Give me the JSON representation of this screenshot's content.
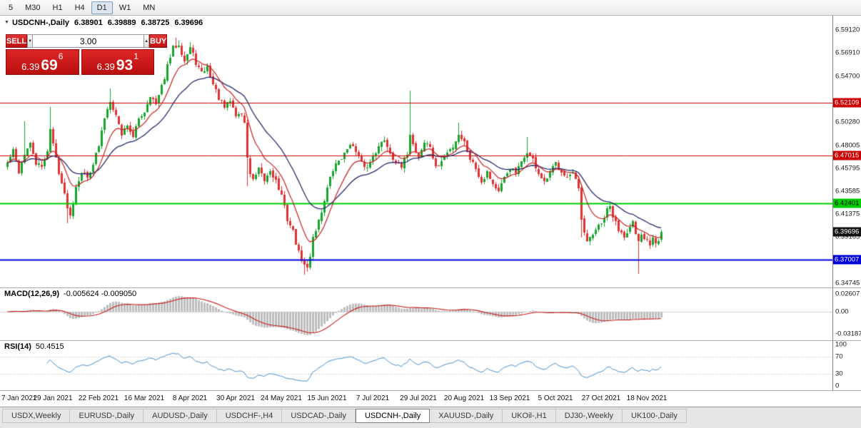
{
  "toolbar": {
    "timeframes": [
      "5",
      "M30",
      "H1",
      "H4",
      "D1",
      "W1",
      "MN"
    ],
    "active_timeframe": "D1"
  },
  "chart_header": {
    "title": "USDCNH-,Daily",
    "open": "6.38901",
    "high": "6.39889",
    "low": "6.38725",
    "close": "6.39696"
  },
  "trade_panel": {
    "sell_label": "SELL",
    "buy_label": "BUY",
    "lot_value": "3.00",
    "sell_price": {
      "prefix": "6.39",
      "main": "69",
      "sup": "6"
    },
    "buy_price": {
      "prefix": "6.39",
      "main": "93",
      "sup": "1"
    }
  },
  "icons": {
    "collapse": "▼",
    "spin_up": "▲",
    "spin_down": "▼"
  },
  "colors": {
    "candle_up": "#18a42e",
    "candle_down": "#e03232",
    "ma_fast": "#c81e1e",
    "ma_slow": "#262a6e",
    "macd_hist": "#bdbdbd",
    "macd_signal": "#c81e1e",
    "rsi_line": "#4f93ce",
    "current_price_bg": "#111111"
  },
  "chart_data": {
    "type": "candlestick",
    "symbol": "USDCNH-",
    "timeframe": "Daily",
    "title": "USDCNH-,Daily",
    "ohlc_current": {
      "open": 6.38901,
      "high": 6.39889,
      "low": 6.38725,
      "close": 6.39696
    },
    "candle_count": 230,
    "seed": 42,
    "noise": 0.0026,
    "wick": 0.004,
    "open_jitter": 0.0012,
    "price_min": 6.343,
    "price_max": 6.6045,
    "price_axis_ticks": [
      {
        "price": 6.5912,
        "label": "6.59120"
      },
      {
        "price": 6.5691,
        "label": "6.56910"
      },
      {
        "price": 6.547,
        "label": "6.54700"
      },
      {
        "price": 6.5028,
        "label": "6.50280"
      },
      {
        "price": 6.48005,
        "label": "6.48005"
      },
      {
        "price": 6.45795,
        "label": "6.45795"
      },
      {
        "price": 6.43585,
        "label": "6.43585"
      },
      {
        "price": 6.41375,
        "label": "6.41375"
      },
      {
        "price": 6.39165,
        "label": "6.39165"
      },
      {
        "price": 6.34745,
        "label": "6.34745"
      }
    ],
    "price_lines": [
      {
        "price": 6.52109,
        "label": "6.52109",
        "color": "#cc0000",
        "text_color": "#ffffff",
        "draw_line": true,
        "line_width": 1
      },
      {
        "price": 6.47015,
        "label": "6.47015",
        "color": "#cc0000",
        "text_color": "#ffffff",
        "draw_line": true,
        "line_width": 1
      },
      {
        "price": 6.42401,
        "label": "6.42401",
        "color": "#00ce00",
        "text_color": "#000000",
        "draw_line": true,
        "line_width": 2
      },
      {
        "price": 6.39696,
        "label": "6.39696",
        "color": "#111111",
        "text_color": "#ffffff",
        "draw_line": false,
        "line_width": 0
      },
      {
        "price": 6.37007,
        "label": "6.37007",
        "color": "#0000dd",
        "text_color": "#ffffff",
        "draw_line": true,
        "line_width": 2
      }
    ],
    "x_labels": [
      {
        "i": 0,
        "t": "7 Jan 2021"
      },
      {
        "i": 16,
        "t": "29 Jan 2021"
      },
      {
        "i": 32,
        "t": "22 Feb 2021"
      },
      {
        "i": 48,
        "t": "16 Mar 2021"
      },
      {
        "i": 64,
        "t": "8 Apr 2021"
      },
      {
        "i": 80,
        "t": "30 Apr 2021"
      },
      {
        "i": 96,
        "t": "24 May 2021"
      },
      {
        "i": 112,
        "t": "15 Jun 2021"
      },
      {
        "i": 128,
        "t": "7 Jul 2021"
      },
      {
        "i": 144,
        "t": "29 Jul 2021"
      },
      {
        "i": 160,
        "t": "20 Aug 2021"
      },
      {
        "i": 176,
        "t": "13 Sep 2021"
      },
      {
        "i": 192,
        "t": "5 Oct 2021"
      },
      {
        "i": 208,
        "t": "27 Oct 2021"
      },
      {
        "i": 224,
        "t": "18 Nov 2021"
      }
    ],
    "close_anchors": [
      [
        0,
        6.463
      ],
      [
        2,
        6.475
      ],
      [
        4,
        6.455
      ],
      [
        6,
        6.472
      ],
      [
        8,
        6.481
      ],
      [
        10,
        6.463
      ],
      [
        12,
        6.458
      ],
      [
        14,
        6.476
      ],
      [
        15,
        6.496
      ],
      [
        16,
        6.481
      ],
      [
        18,
        6.455
      ],
      [
        20,
        6.432
      ],
      [
        22,
        6.412
      ],
      [
        24,
        6.441
      ],
      [
        26,
        6.455
      ],
      [
        28,
        6.449
      ],
      [
        30,
        6.463
      ],
      [
        32,
        6.479
      ],
      [
        34,
        6.507
      ],
      [
        36,
        6.524
      ],
      [
        38,
        6.509
      ],
      [
        40,
        6.491
      ],
      [
        42,
        6.501
      ],
      [
        44,
        6.487
      ],
      [
        46,
        6.506
      ],
      [
        48,
        6.513
      ],
      [
        50,
        6.529
      ],
      [
        52,
        6.519
      ],
      [
        54,
        6.536
      ],
      [
        56,
        6.556
      ],
      [
        58,
        6.574
      ],
      [
        60,
        6.578
      ],
      [
        62,
        6.562
      ],
      [
        64,
        6.574
      ],
      [
        66,
        6.56
      ],
      [
        68,
        6.549
      ],
      [
        70,
        6.556
      ],
      [
        72,
        6.539
      ],
      [
        74,
        6.526
      ],
      [
        76,
        6.516
      ],
      [
        78,
        6.523
      ],
      [
        80,
        6.509
      ],
      [
        82,
        6.511
      ],
      [
        83,
        6.501
      ],
      [
        84,
        6.469
      ],
      [
        85,
        6.453
      ],
      [
        86,
        6.446
      ],
      [
        88,
        6.456
      ],
      [
        90,
        6.446
      ],
      [
        92,
        6.456
      ],
      [
        94,
        6.446
      ],
      [
        96,
        6.431
      ],
      [
        98,
        6.409
      ],
      [
        100,
        6.397
      ],
      [
        102,
        6.376
      ],
      [
        104,
        6.364
      ],
      [
        105,
        6.361
      ],
      [
        106,
        6.374
      ],
      [
        107,
        6.392
      ],
      [
        108,
        6.399
      ],
      [
        110,
        6.416
      ],
      [
        112,
        6.439
      ],
      [
        114,
        6.456
      ],
      [
        116,
        6.466
      ],
      [
        118,
        6.471
      ],
      [
        120,
        6.483
      ],
      [
        122,
        6.473
      ],
      [
        124,
        6.463
      ],
      [
        126,
        6.458
      ],
      [
        128,
        6.471
      ],
      [
        130,
        6.478
      ],
      [
        132,
        6.486
      ],
      [
        134,
        6.473
      ],
      [
        136,
        6.464
      ],
      [
        138,
        6.458
      ],
      [
        140,
        6.473
      ],
      [
        141,
        6.492
      ],
      [
        142,
        6.481
      ],
      [
        144,
        6.469
      ],
      [
        146,
        6.483
      ],
      [
        148,
        6.479
      ],
      [
        150,
        6.458
      ],
      [
        152,
        6.465
      ],
      [
        154,
        6.473
      ],
      [
        156,
        6.479
      ],
      [
        158,
        6.491
      ],
      [
        160,
        6.483
      ],
      [
        162,
        6.468
      ],
      [
        164,
        6.458
      ],
      [
        166,
        6.445
      ],
      [
        168,
        6.455
      ],
      [
        170,
        6.443
      ],
      [
        172,
        6.435
      ],
      [
        174,
        6.448
      ],
      [
        176,
        6.459
      ],
      [
        178,
        6.453
      ],
      [
        180,
        6.463
      ],
      [
        182,
        6.474
      ],
      [
        184,
        6.466
      ],
      [
        186,
        6.453
      ],
      [
        188,
        6.443
      ],
      [
        190,
        6.453
      ],
      [
        192,
        6.463
      ],
      [
        194,
        6.456
      ],
      [
        196,
        6.449
      ],
      [
        198,
        6.453
      ],
      [
        200,
        6.437
      ],
      [
        201,
        6.408
      ],
      [
        202,
        6.394
      ],
      [
        203,
        6.386
      ],
      [
        204,
        6.391
      ],
      [
        206,
        6.399
      ],
      [
        208,
        6.404
      ],
      [
        210,
        6.417
      ],
      [
        211,
        6.421
      ],
      [
        212,
        6.411
      ],
      [
        214,
        6.399
      ],
      [
        216,
        6.394
      ],
      [
        218,
        6.401
      ],
      [
        219,
        6.406
      ],
      [
        220,
        6.392
      ],
      [
        221,
        6.386
      ],
      [
        222,
        6.394
      ],
      [
        223,
        6.389
      ],
      [
        224,
        6.391
      ],
      [
        225,
        6.385
      ],
      [
        226,
        6.393
      ],
      [
        227,
        6.388
      ],
      [
        228,
        6.389
      ],
      [
        229,
        6.39696
      ]
    ],
    "spikes": [
      {
        "i": 6,
        "high": 6.503
      },
      {
        "i": 15,
        "high": 6.517
      },
      {
        "i": 21,
        "low": 6.405
      },
      {
        "i": 36,
        "high": 6.535
      },
      {
        "i": 59,
        "high": 6.584
      },
      {
        "i": 60,
        "high": 6.581
      },
      {
        "i": 64,
        "high": 6.58
      },
      {
        "i": 84,
        "low": 6.441
      },
      {
        "i": 104,
        "low": 6.3555
      },
      {
        "i": 105,
        "low": 6.358
      },
      {
        "i": 141,
        "high": 6.533
      },
      {
        "i": 158,
        "high": 6.502
      },
      {
        "i": 182,
        "high": 6.488
      },
      {
        "i": 201,
        "low": 6.391
      },
      {
        "i": 221,
        "low": 6.356
      }
    ],
    "overlays": [
      {
        "name": "fast-ma",
        "period": 10,
        "color_key": "ma_fast"
      },
      {
        "name": "slow-ma",
        "period": 25,
        "color_key": "ma_slow"
      }
    ],
    "macd": {
      "label": "MACD(12,26,9)",
      "values_text": "-0.005624 -0.009050",
      "fast": 12,
      "slow": 26,
      "signal": 9,
      "axis_ticks": [
        {
          "v": 0.02607,
          "label": "0.02607"
        },
        {
          "v": 0,
          "label": "0.00"
        },
        {
          "v": -0.03187,
          "label": "-0.03187"
        }
      ]
    },
    "rsi": {
      "label": "RSI(14)",
      "value_text": "50.4515",
      "period": 14,
      "axis_ticks": [
        {
          "v": 100,
          "label": "100"
        },
        {
          "v": 70,
          "label": "70"
        },
        {
          "v": 30,
          "label": "30"
        },
        {
          "v": 0,
          "label": "0"
        }
      ],
      "levels": [
        70,
        30
      ]
    }
  },
  "bottom_tabs": {
    "active": "USDCNH-,Daily",
    "tabs": [
      "USDX,Weekly",
      "EURUSD-,Daily",
      "AUDUSD-,Daily",
      "USDCHF-,H4",
      "USDCAD-,Daily",
      "USDCNH-,Daily",
      "XAUUSD-,Daily",
      "UKOil-,H1",
      "DJ30-,Weekly",
      "UK100-,Daily"
    ]
  }
}
